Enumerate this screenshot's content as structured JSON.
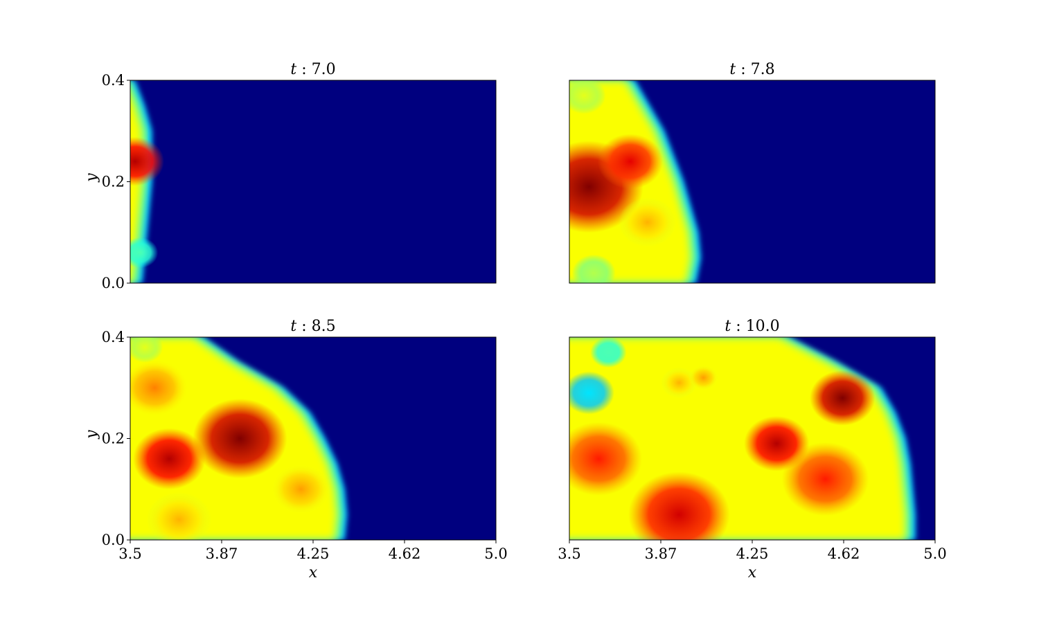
{
  "chart_data": {
    "type": "heatmap",
    "colormap": "jet",
    "background_color": "#00007f",
    "xlabel": "x",
    "ylabel": "y",
    "xlim": [
      3.5,
      5.0
    ],
    "ylim": [
      0.0,
      0.4
    ],
    "xticks": [
      3.5,
      3.875,
      4.25,
      4.625,
      5.0
    ],
    "xtick_labels": [
      "3.5",
      "3.87",
      "4.25",
      "4.62",
      "5.0"
    ],
    "yticks": [
      0.0,
      0.2,
      0.4
    ],
    "ytick_labels": [
      "0.0",
      "0.2",
      "0.4"
    ],
    "panels": [
      {
        "title_var": "t",
        "title_sep": ":",
        "title_value": "7.0",
        "front_x": [
          3.55,
          3.56,
          3.57,
          3.58,
          3.59,
          3.59,
          3.59,
          3.56,
          3.52
        ],
        "blobs": [
          {
            "x": 3.52,
            "y": 0.24,
            "r": 0.08,
            "v": 0.95
          },
          {
            "x": 3.54,
            "y": 0.06,
            "r": 0.05,
            "v": 0.45
          }
        ]
      },
      {
        "title_var": "t",
        "title_sep": ":",
        "title_value": "7.8",
        "front_x": [
          4.02,
          4.04,
          4.03,
          4.0,
          3.97,
          3.93,
          3.89,
          3.83,
          3.77
        ],
        "blobs": [
          {
            "x": 3.58,
            "y": 0.19,
            "r": 0.15,
            "v": 1.0
          },
          {
            "x": 3.75,
            "y": 0.24,
            "r": 0.09,
            "v": 0.9
          },
          {
            "x": 3.82,
            "y": 0.12,
            "r": 0.08,
            "v": 0.7
          },
          {
            "x": 3.56,
            "y": 0.37,
            "r": 0.06,
            "v": 0.6
          },
          {
            "x": 3.6,
            "y": 0.02,
            "r": 0.06,
            "v": 0.55
          }
        ]
      },
      {
        "title_var": "t",
        "title_sep": ":",
        "title_value": "8.5",
        "front_x": [
          4.38,
          4.39,
          4.38,
          4.35,
          4.3,
          4.24,
          4.13,
          3.95,
          3.8
        ],
        "blobs": [
          {
            "x": 3.95,
            "y": 0.2,
            "r": 0.13,
            "v": 1.0
          },
          {
            "x": 3.66,
            "y": 0.16,
            "r": 0.1,
            "v": 0.95
          },
          {
            "x": 3.6,
            "y": 0.3,
            "r": 0.09,
            "v": 0.75
          },
          {
            "x": 3.7,
            "y": 0.04,
            "r": 0.09,
            "v": 0.7
          },
          {
            "x": 4.2,
            "y": 0.1,
            "r": 0.08,
            "v": 0.72
          },
          {
            "x": 3.56,
            "y": 0.38,
            "r": 0.05,
            "v": 0.6
          }
        ]
      },
      {
        "title_var": "t",
        "title_sep": ":",
        "title_value": "10.0",
        "front_x": [
          4.92,
          4.92,
          4.91,
          4.9,
          4.88,
          4.84,
          4.78,
          4.6,
          4.4
        ],
        "blobs": [
          {
            "x": 4.62,
            "y": 0.28,
            "r": 0.09,
            "v": 1.0
          },
          {
            "x": 4.35,
            "y": 0.19,
            "r": 0.09,
            "v": 0.95
          },
          {
            "x": 3.95,
            "y": 0.05,
            "r": 0.14,
            "v": 0.92
          },
          {
            "x": 4.55,
            "y": 0.12,
            "r": 0.12,
            "v": 0.85
          },
          {
            "x": 3.62,
            "y": 0.16,
            "r": 0.12,
            "v": 0.85
          },
          {
            "x": 3.58,
            "y": 0.29,
            "r": 0.07,
            "v": 0.35
          },
          {
            "x": 3.66,
            "y": 0.37,
            "r": 0.05,
            "v": 0.45
          },
          {
            "x": 3.95,
            "y": 0.31,
            "r": 0.05,
            "v": 0.7
          },
          {
            "x": 4.05,
            "y": 0.32,
            "r": 0.04,
            "v": 0.72
          }
        ]
      }
    ]
  }
}
